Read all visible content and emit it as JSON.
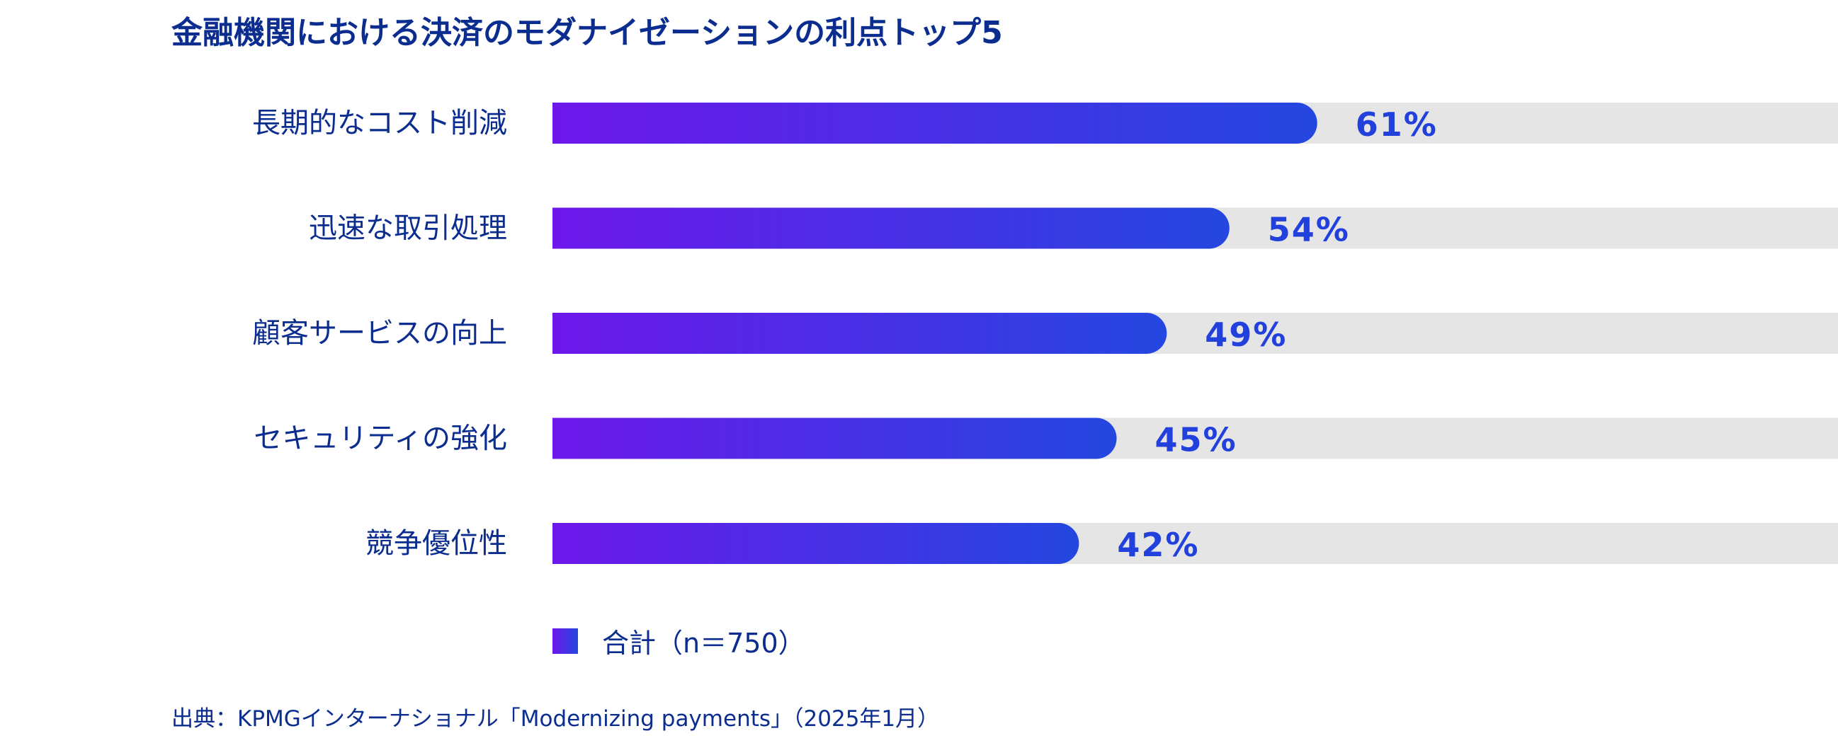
{
  "chart_data": {
    "type": "bar",
    "orientation": "horizontal",
    "title": "金融機関における決済のモダナイゼーションの利点トップ5",
    "categories": [
      "長期的なコスト削減",
      "迅速な取引処理",
      "顧客サービスの向上",
      "セキュリティの強化",
      "競争優位性"
    ],
    "series": [
      {
        "name": "合計（n＝750）",
        "values": [
          61,
          54,
          49,
          45,
          42
        ],
        "value_labels": [
          "61%",
          "54%",
          "49%",
          "45%",
          "42%"
        ]
      }
    ],
    "xlim": [
      0,
      100
    ],
    "grid": false,
    "legend_position": "bottom-left",
    "colors": {
      "bar_gradient_start": "#6d17ea",
      "bar_gradient_end": "#2447e0",
      "track": "#e5e5e5",
      "value_text": "#2140dc",
      "text": "#0b2d8f"
    }
  },
  "source": "出典：KPMGインターナショナル「Modernizing payments」（2025年1月）"
}
